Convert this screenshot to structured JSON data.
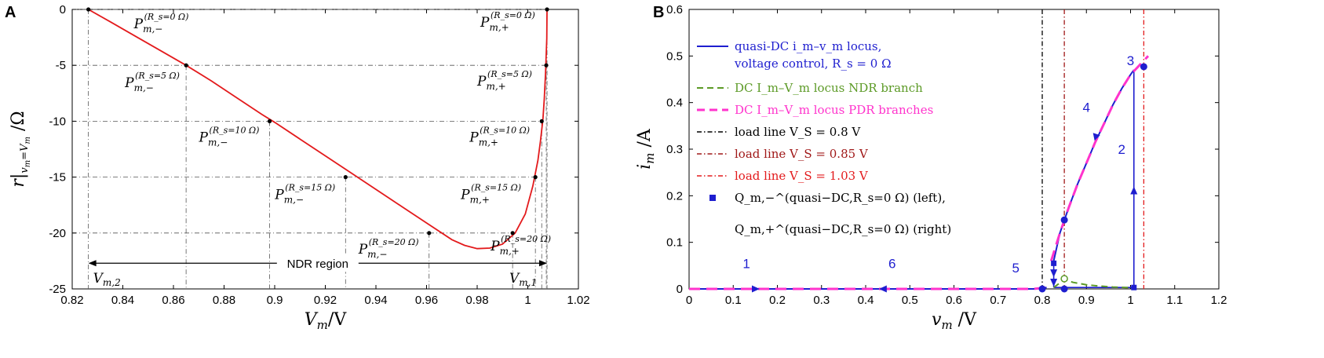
{
  "chart_data": [
    {
      "panel": "A",
      "type": "line",
      "xlabel": "V_m/V",
      "ylabel": "r|v_m=V_m/Ω",
      "xlim": [
        0.82,
        1.02
      ],
      "ylim": [
        -25,
        0
      ],
      "xticks": [
        "0.82",
        "0.84",
        "0.86",
        "0.88",
        "0.9",
        "0.92",
        "0.94",
        "0.96",
        "0.98",
        "1",
        "1.02"
      ],
      "yticks": [
        "0",
        "-5",
        "-10",
        "-15",
        "-20",
        "-25"
      ],
      "grid": "dash-dot",
      "curve_color": "#e31a1c",
      "curve": {
        "x": [
          0.8264,
          0.835,
          0.845,
          0.855,
          0.865,
          0.875,
          0.885,
          0.895,
          0.9,
          0.91,
          0.92,
          0.93,
          0.94,
          0.95,
          0.96,
          0.97,
          0.975,
          0.98,
          0.985,
          0.99,
          0.995,
          0.999,
          1.002,
          1.004,
          1.005,
          1.006,
          1.0065,
          1.007,
          1.0075,
          1.0076
        ],
        "y": [
          0,
          -1.1,
          -2.4,
          -3.7,
          -5.0,
          -6.4,
          -7.9,
          -9.4,
          -10.1,
          -11.6,
          -13.1,
          -14.6,
          -16.1,
          -17.6,
          -19.1,
          -20.6,
          -21.1,
          -21.4,
          -21.35,
          -21.0,
          -20.0,
          -18.3,
          -15.8,
          -13.5,
          -11.8,
          -9.8,
          -8.0,
          -5.7,
          -2.6,
          0
        ]
      },
      "points_minus": [
        {
          "x": 0.8264,
          "y": 0,
          "rs": "R_s=0 Ω"
        },
        {
          "x": 0.865,
          "y": -5,
          "rs": "R_s=5 Ω"
        },
        {
          "x": 0.898,
          "y": -10,
          "rs": "R_s=10 Ω"
        },
        {
          "x": 0.928,
          "y": -15,
          "rs": "R_s=15 Ω"
        },
        {
          "x": 0.961,
          "y": -20,
          "rs": "R_s=20 Ω"
        }
      ],
      "points_plus": [
        {
          "x": 1.0076,
          "y": 0,
          "rs": "R_s=0 Ω"
        },
        {
          "x": 1.0073,
          "y": -5,
          "rs": "R_s=5 Ω"
        },
        {
          "x": 1.0055,
          "y": -10,
          "rs": "R_s=10 Ω"
        },
        {
          "x": 1.003,
          "y": -15,
          "rs": "R_s=15 Ω"
        },
        {
          "x": 0.994,
          "y": -20,
          "rs": "R_s=20 Ω"
        }
      ],
      "label_base": "P",
      "label_sub_minus": "m,−",
      "label_sub_plus": "m,+",
      "region_label": "NDR region",
      "region_y": -22.7,
      "v_left_label": "V_m,2",
      "v_right_label": "V_m,1"
    },
    {
      "panel": "B",
      "type": "line",
      "xlabel": "v_m /V",
      "ylabel": "i_m /A",
      "xlim": [
        0,
        1.2
      ],
      "ylim": [
        0,
        0.6
      ],
      "xticks": [
        "0",
        "0.1",
        "0.2",
        "0.3",
        "0.4",
        "0.5",
        "0.6",
        "0.7",
        "0.8",
        "0.9",
        "1",
        "1.1",
        "1.2"
      ],
      "yticks": [
        "0",
        "0.1",
        "0.2",
        "0.3",
        "0.4",
        "0.5",
        "0.6"
      ],
      "colors": {
        "blue": "#1e1ecf",
        "magenta": "#ff33cc",
        "green": "#5c9a26",
        "black": "#000000",
        "darkred": "#a01818",
        "red": "#e31a1c"
      },
      "series": [
        {
          "name": "DC I_m–V_m locus PDR branches (left)",
          "x": [
            0,
            0.78,
            0.81
          ],
          "y": [
            0,
            0,
            0.003
          ]
        },
        {
          "name": "DC I_m–V_m locus PDR branches (right)",
          "x": [
            0.82,
            0.84,
            0.86,
            0.88,
            0.9,
            0.92,
            0.94,
            0.96,
            0.98,
            1.0,
            1.02,
            1.04
          ],
          "y": [
            0.06,
            0.12,
            0.175,
            0.225,
            0.27,
            0.315,
            0.355,
            0.395,
            0.43,
            0.46,
            0.48,
            0.5
          ]
        },
        {
          "name": "DC I_m–V_m locus NDR branch",
          "x": [
            0.826,
            0.85,
            0.87,
            0.9,
            0.93,
            0.96,
            0.99,
            1.0076
          ],
          "y": [
            0.003,
            0.02,
            0.014,
            0.009,
            0.006,
            0.004,
            0.003,
            0.003
          ]
        },
        {
          "name": "quasi-DC path",
          "x": [
            0.826,
            0.84,
            0.86,
            0.88,
            0.9,
            0.92,
            0.94,
            0.96,
            0.98,
            1.0,
            1.0076
          ],
          "y": [
            0.06,
            0.12,
            0.175,
            0.225,
            0.27,
            0.315,
            0.355,
            0.395,
            0.43,
            0.46,
            0.47
          ]
        }
      ],
      "load_lines": [
        {
          "x": 0.8,
          "color": "black"
        },
        {
          "x": 0.85,
          "color": "darkred"
        },
        {
          "x": 1.03,
          "color": "red"
        }
      ],
      "markers_q": [
        {
          "x": 0.826,
          "y": 0.055
        },
        {
          "x": 1.0076,
          "y": 0.003
        }
      ],
      "green_circle": {
        "x": 0.85,
        "y": 0.022
      },
      "dots": [
        {
          "x": 0.8,
          "y": 0
        },
        {
          "x": 0.85,
          "y": 0
        },
        {
          "x": 0.85,
          "y": 0.148
        },
        {
          "x": 1.03,
          "y": 0.477
        }
      ],
      "step_labels": [
        {
          "text": "1",
          "x": 0.13,
          "y": 0.045
        },
        {
          "text": "2",
          "x": 0.98,
          "y": 0.29
        },
        {
          "text": "3",
          "x": 1.0,
          "y": 0.48
        },
        {
          "text": "4",
          "x": 0.9,
          "y": 0.38
        },
        {
          "text": "5",
          "x": 0.74,
          "y": 0.035
        },
        {
          "text": "6",
          "x": 0.46,
          "y": 0.045
        }
      ],
      "legend": [
        {
          "style": "solid-blue",
          "text": "quasi-DC i_m–v_m locus,"
        },
        {
          "style": "none",
          "text": "voltage control, R_s = 0 Ω"
        },
        {
          "style": "dash-green",
          "text": "DC I_m–V_m locus NDR branch"
        },
        {
          "style": "dash-magenta",
          "text": "DC I_m–V_m locus PDR branches"
        },
        {
          "style": "dashdot-black",
          "text": "load line V_S = 0.8 V"
        },
        {
          "style": "dashdot-darkred",
          "text": "load line V_S = 0.85 V"
        },
        {
          "style": "dashdot-red",
          "text": "load line V_S = 1.03 V"
        },
        {
          "style": "square-blue",
          "text": "Q_m,−^(quasi−DC,R_s=0 Ω) (left),"
        },
        {
          "style": "none",
          "text": "Q_m,+^(quasi−DC,R_s=0 Ω) (right)"
        }
      ]
    }
  ],
  "panel_letters": [
    "A",
    "B"
  ]
}
